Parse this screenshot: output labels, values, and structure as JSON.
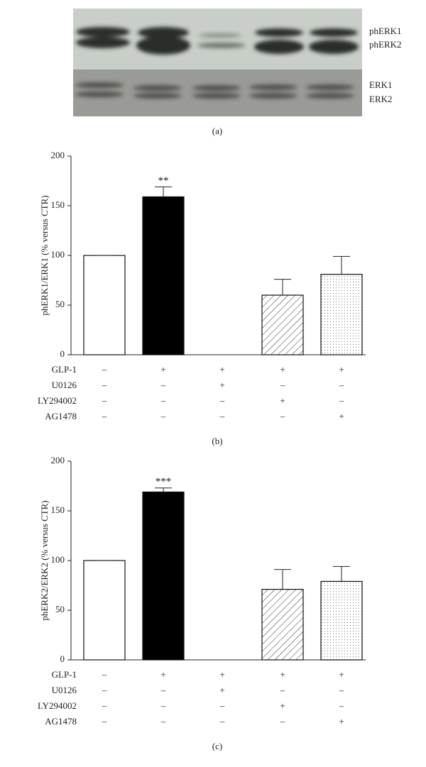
{
  "blot": {
    "labels": [
      "phERK1",
      "phERK2",
      "ERK1",
      "ERK2"
    ],
    "caption": "(a)"
  },
  "chart_data": [
    {
      "type": "bar",
      "ylabel": "phERK1/ERK1 (% versus CTR)",
      "caption": "(b)",
      "values": [
        100,
        159,
        0,
        60,
        81
      ],
      "errors": [
        0,
        10,
        0,
        16,
        18
      ],
      "colors": [
        "#ffffff",
        "#000000",
        "#ffffff",
        "#ffffff",
        "#ffffff"
      ],
      "patterns": [
        "plain",
        "plain",
        "plain",
        "hatch",
        "dots"
      ],
      "annotations": [
        {
          "text": "**",
          "bar": 1
        }
      ],
      "ylim": [
        0,
        200
      ],
      "yticks": [
        0,
        50,
        100,
        150,
        200
      ],
      "treatments": [
        {
          "name": "GLP-1",
          "signs": [
            "–",
            "+",
            "+",
            "+",
            "+"
          ]
        },
        {
          "name": "U0126",
          "signs": [
            "–",
            "–",
            "+",
            "–",
            "–"
          ]
        },
        {
          "name": "LY294002",
          "signs": [
            "–",
            "–",
            "–",
            "+",
            "–"
          ]
        },
        {
          "name": "AG1478",
          "signs": [
            "–",
            "–",
            "–",
            "–",
            "+"
          ]
        }
      ]
    },
    {
      "type": "bar",
      "ylabel": "phERK2/ERK2 (% versus CTR)",
      "caption": "(c)",
      "values": [
        100,
        169,
        0,
        71,
        79
      ],
      "errors": [
        0,
        4,
        0,
        20,
        15
      ],
      "colors": [
        "#ffffff",
        "#000000",
        "#ffffff",
        "#ffffff",
        "#ffffff"
      ],
      "patterns": [
        "plain",
        "plain",
        "plain",
        "hatch",
        "dots"
      ],
      "annotations": [
        {
          "text": "***",
          "bar": 1
        }
      ],
      "ylim": [
        0,
        200
      ],
      "yticks": [
        0,
        50,
        100,
        150,
        200
      ],
      "treatments": [
        {
          "name": "GLP-1",
          "signs": [
            "–",
            "+",
            "+",
            "+",
            "+"
          ]
        },
        {
          "name": "U0126",
          "signs": [
            "–",
            "–",
            "+",
            "–",
            "–"
          ]
        },
        {
          "name": "LY294002",
          "signs": [
            "–",
            "–",
            "–",
            "+",
            "–"
          ]
        },
        {
          "name": "AG1478",
          "signs": [
            "–",
            "–",
            "–",
            "–",
            "+"
          ]
        }
      ]
    }
  ]
}
